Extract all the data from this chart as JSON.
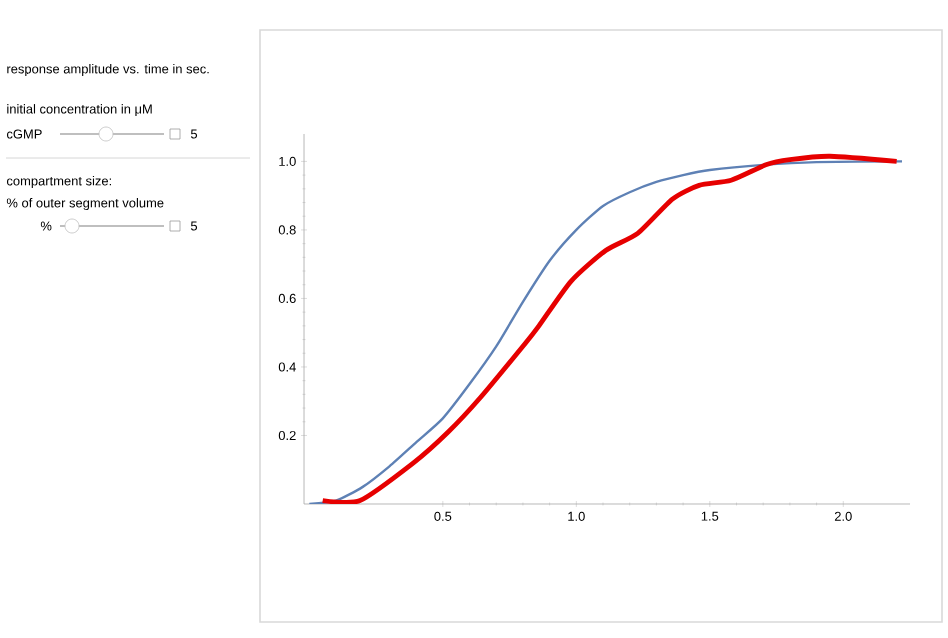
{
  "chart_data": {
    "type": "line",
    "title": "response amplitude vs. time in sec.",
    "annotations": [
      "initial concentration in μM",
      "cGMP",
      "5",
      "compartment size:",
      "% of outer segment volume",
      "%",
      "5"
    ],
    "xlim": [
      -0.02,
      2.25
    ],
    "ylim": [
      0,
      1.08
    ],
    "xticks": [
      0.5,
      {
        "value": 1,
        "label": "1.0"
      },
      1.5,
      {
        "value": 2,
        "label": "2.0"
      }
    ],
    "yticks": [
      0.2,
      0.4,
      0.6,
      0.8,
      {
        "value": 1,
        "label": "1.0"
      }
    ],
    "series": [
      {
        "color": "#5e81b5",
        "x": [
          0,
          0.1,
          0.2,
          0.3,
          0.4,
          0.5,
          0.6,
          0.7,
          0.8,
          0.9,
          1.0,
          1.1,
          1.2,
          1.3,
          1.4,
          1.5,
          1.7,
          1.9,
          2.22
        ],
        "values": [
          0,
          0.01,
          0.05,
          0.11,
          0.18,
          0.25,
          0.35,
          0.46,
          0.59,
          0.71,
          0.8,
          0.87,
          0.91,
          0.94,
          0.96,
          0.975,
          0.99,
          0.998,
          1.0
        ]
      },
      {
        "color": "#e60000",
        "x": [
          0.05,
          0.19,
          0.39,
          0.52,
          0.64,
          0.81,
          0.86,
          0.98,
          1.11,
          1.23,
          1.36,
          1.46,
          1.58,
          1.71,
          1.8,
          1.95,
          2.2
        ],
        "values": [
          0.01,
          0.01,
          0.12,
          0.21,
          0.31,
          0.47,
          0.52,
          0.65,
          0.74,
          0.79,
          0.89,
          0.93,
          0.945,
          0.99,
          1.005,
          1.015,
          1.0
        ]
      }
    ]
  }
}
